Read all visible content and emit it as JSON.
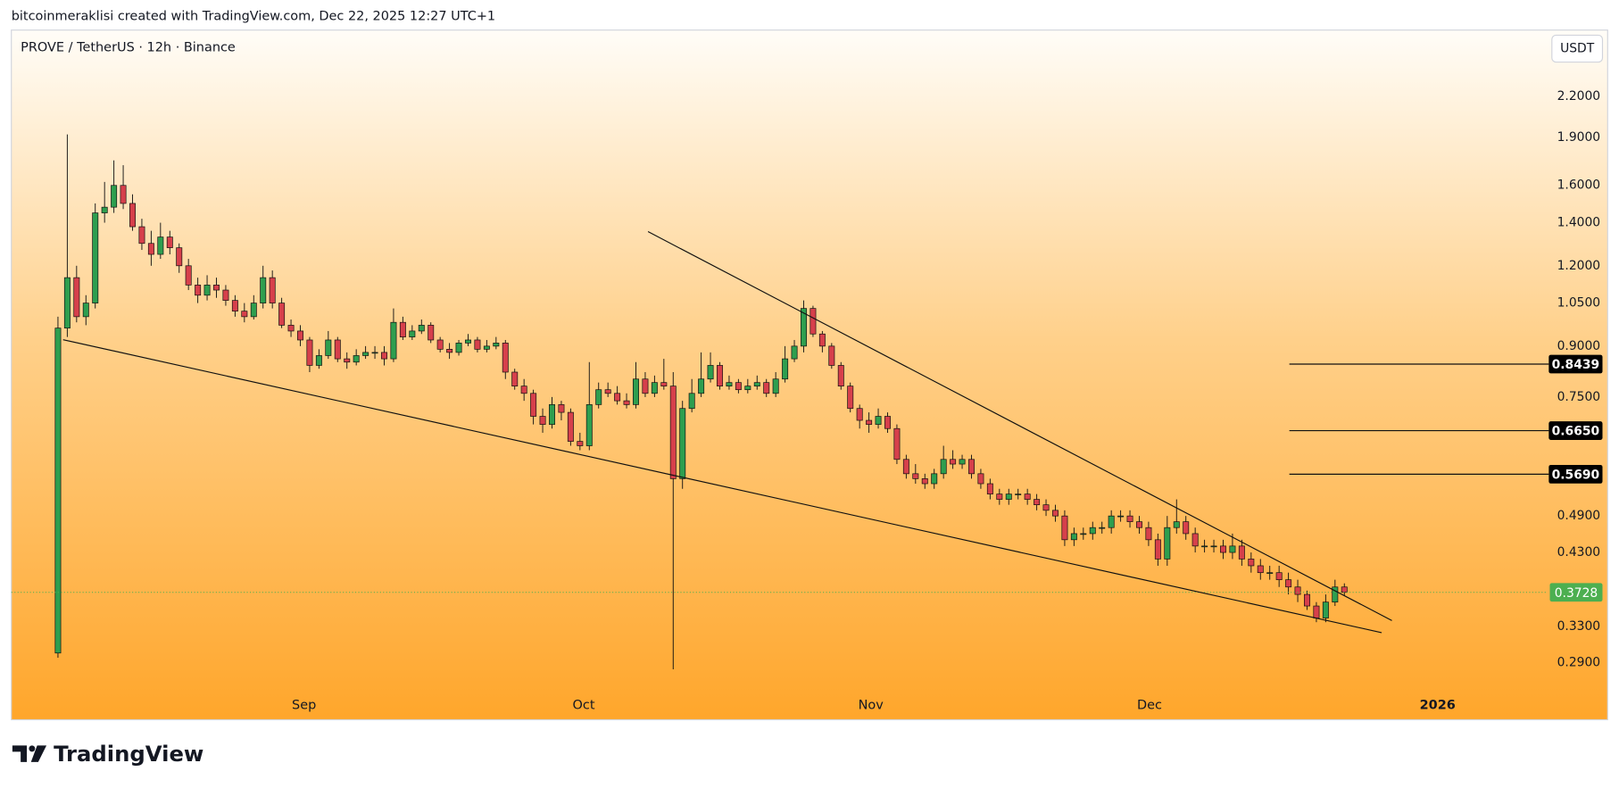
{
  "header": "bitcoinmeraklisi created with TradingView.com, Dec 22, 2025 12:27 UTC+1",
  "footer_logo": "TradingView",
  "chart_data": {
    "type": "candlestick",
    "title": "PROVE / TetherUS · 12h · Binance",
    "currency": "USDT",
    "log_scale": true,
    "up_color": "#2e9e4f",
    "down_color": "#d6404b",
    "open": [
      0.3,
      0.96,
      1.15,
      1.0,
      1.05,
      1.45,
      1.48,
      1.6,
      1.5,
      1.38,
      1.3,
      1.25,
      1.33,
      1.28,
      1.2,
      1.12,
      1.08,
      1.12,
      1.1,
      1.06,
      1.02,
      1.0,
      1.05,
      1.15,
      1.05,
      0.97,
      0.95,
      0.92,
      0.84,
      0.87,
      0.92,
      0.86,
      0.85,
      0.87,
      0.88,
      0.88,
      0.86,
      0.98,
      0.93,
      0.95,
      0.97,
      0.92,
      0.89,
      0.88,
      0.91,
      0.92,
      0.89,
      0.9,
      0.91,
      0.82,
      0.78,
      0.76,
      0.7,
      0.68,
      0.73,
      0.71,
      0.64,
      0.63,
      0.73,
      0.77,
      0.76,
      0.74,
      0.73,
      0.8,
      0.76,
      0.79,
      0.78,
      0.56,
      0.72,
      0.76,
      0.8,
      0.84,
      0.78,
      0.79,
      0.77,
      0.78,
      0.79,
      0.76,
      0.8,
      0.86,
      0.9,
      1.03,
      0.94,
      0.9,
      0.84,
      0.78,
      0.72,
      0.69,
      0.68,
      0.7,
      0.67,
      0.6,
      0.57,
      0.56,
      0.55,
      0.57,
      0.6,
      0.59,
      0.6,
      0.57,
      0.55,
      0.53,
      0.52,
      0.53,
      0.53,
      0.52,
      0.51,
      0.5,
      0.49,
      0.45,
      0.46,
      0.46,
      0.47,
      0.47,
      0.49,
      0.49,
      0.48,
      0.47,
      0.45,
      0.42,
      0.47,
      0.48,
      0.46,
      0.44,
      0.44,
      0.44,
      0.43,
      0.44,
      0.42,
      0.41,
      0.4,
      0.4,
      0.39,
      0.38,
      0.37,
      0.355,
      0.34,
      0.36,
      0.38
    ],
    "high": [
      1.0,
      1.92,
      1.2,
      1.08,
      1.5,
      1.62,
      1.75,
      1.72,
      1.55,
      1.42,
      1.36,
      1.4,
      1.36,
      1.3,
      1.23,
      1.15,
      1.16,
      1.15,
      1.12,
      1.08,
      1.05,
      1.08,
      1.2,
      1.18,
      1.07,
      0.99,
      0.97,
      0.93,
      0.89,
      0.95,
      0.93,
      0.88,
      0.89,
      0.9,
      0.9,
      0.9,
      1.03,
      1.0,
      0.97,
      0.99,
      0.98,
      0.93,
      0.91,
      0.92,
      0.94,
      0.93,
      0.92,
      0.93,
      0.92,
      0.83,
      0.8,
      0.77,
      0.72,
      0.75,
      0.74,
      0.72,
      0.66,
      0.85,
      0.79,
      0.79,
      0.78,
      0.76,
      0.85,
      0.82,
      0.81,
      0.86,
      0.82,
      0.74,
      0.8,
      0.88,
      0.88,
      0.85,
      0.81,
      0.8,
      0.8,
      0.81,
      0.8,
      0.82,
      0.9,
      0.92,
      1.06,
      1.04,
      0.95,
      0.91,
      0.85,
      0.79,
      0.73,
      0.71,
      0.72,
      0.71,
      0.68,
      0.61,
      0.59,
      0.57,
      0.58,
      0.63,
      0.62,
      0.61,
      0.61,
      0.58,
      0.56,
      0.54,
      0.54,
      0.54,
      0.54,
      0.53,
      0.52,
      0.51,
      0.5,
      0.47,
      0.47,
      0.48,
      0.48,
      0.5,
      0.5,
      0.5,
      0.49,
      0.48,
      0.46,
      0.49,
      0.52,
      0.49,
      0.47,
      0.45,
      0.45,
      0.45,
      0.46,
      0.45,
      0.43,
      0.42,
      0.41,
      0.41,
      0.4,
      0.39,
      0.375,
      0.36,
      0.37,
      0.39,
      0.385
    ],
    "low": [
      0.295,
      0.93,
      0.98,
      0.97,
      1.03,
      1.4,
      1.45,
      1.47,
      1.36,
      1.27,
      1.2,
      1.23,
      1.25,
      1.17,
      1.1,
      1.05,
      1.06,
      1.07,
      1.04,
      1.0,
      0.98,
      0.99,
      1.03,
      1.03,
      0.96,
      0.93,
      0.9,
      0.82,
      0.83,
      0.86,
      0.85,
      0.83,
      0.84,
      0.86,
      0.86,
      0.84,
      0.85,
      0.92,
      0.92,
      0.94,
      0.91,
      0.88,
      0.86,
      0.87,
      0.9,
      0.88,
      0.88,
      0.89,
      0.8,
      0.77,
      0.74,
      0.68,
      0.66,
      0.67,
      0.69,
      0.63,
      0.62,
      0.62,
      0.72,
      0.75,
      0.73,
      0.72,
      0.72,
      0.75,
      0.75,
      0.77,
      0.283,
      0.54,
      0.71,
      0.75,
      0.79,
      0.77,
      0.77,
      0.76,
      0.76,
      0.77,
      0.75,
      0.75,
      0.79,
      0.85,
      0.88,
      0.93,
      0.88,
      0.83,
      0.77,
      0.71,
      0.67,
      0.66,
      0.67,
      0.66,
      0.59,
      0.56,
      0.55,
      0.54,
      0.54,
      0.56,
      0.58,
      0.58,
      0.56,
      0.54,
      0.52,
      0.51,
      0.51,
      0.52,
      0.51,
      0.5,
      0.49,
      0.48,
      0.44,
      0.44,
      0.45,
      0.45,
      0.46,
      0.46,
      0.48,
      0.47,
      0.46,
      0.44,
      0.41,
      0.41,
      0.46,
      0.45,
      0.43,
      0.43,
      0.43,
      0.42,
      0.42,
      0.41,
      0.4,
      0.39,
      0.39,
      0.38,
      0.37,
      0.36,
      0.35,
      0.335,
      0.335,
      0.355,
      0.368
    ],
    "close": [
      0.96,
      1.15,
      1.0,
      1.05,
      1.45,
      1.48,
      1.6,
      1.5,
      1.38,
      1.3,
      1.25,
      1.33,
      1.28,
      1.2,
      1.12,
      1.08,
      1.12,
      1.1,
      1.06,
      1.02,
      1.0,
      1.05,
      1.15,
      1.05,
      0.97,
      0.95,
      0.92,
      0.84,
      0.87,
      0.92,
      0.86,
      0.85,
      0.87,
      0.88,
      0.88,
      0.86,
      0.98,
      0.93,
      0.95,
      0.97,
      0.92,
      0.89,
      0.88,
      0.91,
      0.92,
      0.89,
      0.9,
      0.91,
      0.82,
      0.78,
      0.76,
      0.7,
      0.68,
      0.73,
      0.71,
      0.64,
      0.63,
      0.73,
      0.77,
      0.76,
      0.74,
      0.73,
      0.8,
      0.76,
      0.79,
      0.78,
      0.56,
      0.72,
      0.76,
      0.8,
      0.84,
      0.78,
      0.79,
      0.77,
      0.78,
      0.79,
      0.76,
      0.8,
      0.86,
      0.9,
      1.03,
      0.94,
      0.9,
      0.84,
      0.78,
      0.72,
      0.69,
      0.68,
      0.7,
      0.67,
      0.6,
      0.57,
      0.56,
      0.55,
      0.57,
      0.6,
      0.59,
      0.6,
      0.57,
      0.55,
      0.53,
      0.52,
      0.53,
      0.53,
      0.52,
      0.51,
      0.5,
      0.49,
      0.45,
      0.46,
      0.46,
      0.47,
      0.47,
      0.49,
      0.49,
      0.48,
      0.47,
      0.45,
      0.42,
      0.47,
      0.48,
      0.46,
      0.44,
      0.44,
      0.44,
      0.43,
      0.44,
      0.42,
      0.41,
      0.4,
      0.4,
      0.39,
      0.38,
      0.37,
      0.355,
      0.34,
      0.36,
      0.38,
      0.3728
    ],
    "xlim": [
      -5,
      159.6
    ],
    "xticks": [
      {
        "value": 26.4,
        "label": "Sep"
      },
      {
        "value": 56.4,
        "label": "Oct"
      },
      {
        "value": 87.2,
        "label": "Nov"
      },
      {
        "value": 117.1,
        "label": "Dec"
      },
      {
        "value": 148.0,
        "label": "2026"
      }
    ],
    "ylim": [
      0.263,
      2.79
    ],
    "yticks": [
      {
        "value": 2.2,
        "label": "2.2000"
      },
      {
        "value": 1.9,
        "label": "1.9000"
      },
      {
        "value": 1.6,
        "label": "1.6000"
      },
      {
        "value": 1.4,
        "label": "1.4000"
      },
      {
        "value": 1.2,
        "label": "1.2000"
      },
      {
        "value": 1.05,
        "label": "1.0500"
      },
      {
        "value": 0.9,
        "label": "0.9000"
      },
      {
        "value": 0.75,
        "label": "0.7500"
      },
      {
        "value": 0.49,
        "label": "0.4900"
      },
      {
        "value": 0.43,
        "label": "0.4300"
      },
      {
        "value": 0.33,
        "label": "0.3300"
      },
      {
        "value": 0.29,
        "label": "0.2900"
      }
    ],
    "levels": {
      "start": 132.1,
      "values": [
        0.8439,
        0.665,
        0.569
      ],
      "value_labels": [
        "0.8439",
        "0.6650",
        "0.5690"
      ]
    },
    "trendlines": [
      {
        "x": [
          63.3,
          143.1
        ],
        "y": [
          1.356,
          0.337
        ]
      },
      {
        "x": [
          0.55,
          142.0
        ],
        "y": [
          0.921,
          0.3227
        ]
      }
    ]
  }
}
